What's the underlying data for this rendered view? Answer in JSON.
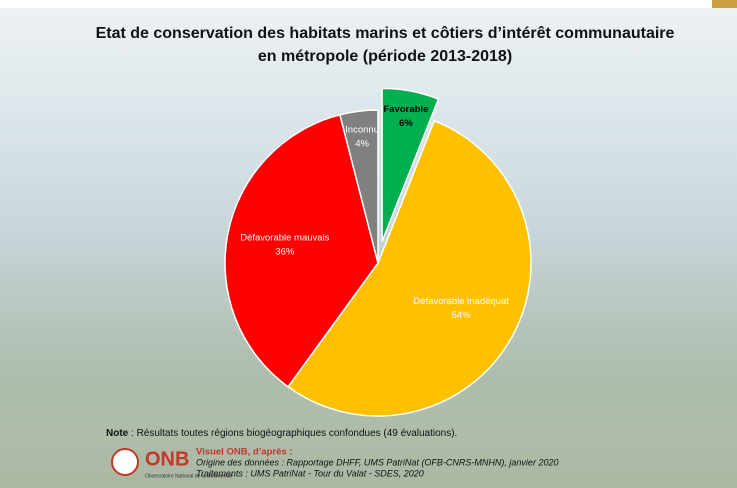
{
  "chart_data": {
    "type": "pie",
    "title": [
      "Etat de conservation des habitats marins et côtiers d’intérêt communautaire",
      "en métropole (période 2013-2018)"
    ],
    "categories": [
      "Favorable",
      "Défavorable inadéquat",
      "Défavorable mauvais",
      "Inconnu"
    ],
    "values": [
      6,
      54,
      36,
      4
    ],
    "value_labels": [
      "6%",
      "54%",
      "36%",
      "4%"
    ],
    "colors": [
      "#00b050",
      "#ffc000",
      "#ff0000",
      "#808080"
    ],
    "exploded": [
      true,
      false,
      false,
      false
    ],
    "note_label": "Note",
    "note": " : Résultats toutes régions biogéographiques confondues (49 évaluations)."
  },
  "source": {
    "logo": "ONB",
    "logo_sub": "Observatoire National de la Biodiversité",
    "heading": "Visuel ONB, d’après :",
    "origin": "Origine des données : Rapportage DHFF, UMS PatriNat (OFB-CNRS-MNHN), janvier 2020",
    "treatment": "Traitements : UMS PatriNat - Tour du Valat - SDES, 2020"
  }
}
